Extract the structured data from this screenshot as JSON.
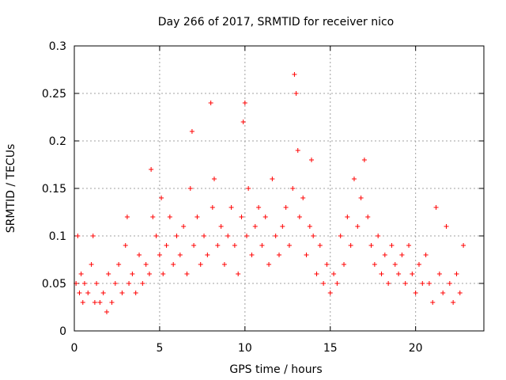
{
  "chart_data": {
    "type": "scatter",
    "title": "Day 266 of 2017, SRMTID for receiver nico",
    "xlabel": "GPS time / hours",
    "ylabel": "SRMTID / TECUs",
    "xlim": [
      0,
      24
    ],
    "ylim": [
      0,
      0.3
    ],
    "xticks": [
      0,
      5,
      10,
      15,
      20
    ],
    "xtick_labels": [
      "0",
      "5",
      "10",
      "15",
      "20"
    ],
    "yticks": [
      0,
      0.05,
      0.1,
      0.15,
      0.2,
      0.25,
      0.3
    ],
    "ytick_labels": [
      "0",
      "0.05",
      "0.1",
      "0.15",
      "0.2",
      "0.25",
      "0.3"
    ],
    "grid": true,
    "marker": "+",
    "color": "#ff0000",
    "series": [
      {
        "name": "SRMTID",
        "x": [
          0.1,
          0.2,
          0.3,
          0.4,
          0.5,
          0.6,
          0.8,
          1.0,
          1.1,
          1.2,
          1.3,
          1.5,
          1.7,
          1.9,
          2.0,
          2.2,
          2.4,
          2.6,
          2.8,
          3.0,
          3.1,
          3.2,
          3.4,
          3.6,
          3.8,
          4.0,
          4.2,
          4.4,
          4.5,
          4.6,
          4.8,
          5.0,
          5.1,
          5.2,
          5.4,
          5.6,
          5.8,
          6.0,
          6.2,
          6.4,
          6.6,
          6.8,
          6.9,
          7.0,
          7.2,
          7.4,
          7.6,
          7.8,
          8.0,
          8.1,
          8.2,
          8.4,
          8.6,
          8.8,
          9.0,
          9.2,
          9.4,
          9.6,
          9.8,
          9.9,
          10.0,
          10.1,
          10.2,
          10.4,
          10.6,
          10.8,
          11.0,
          11.2,
          11.4,
          11.6,
          11.8,
          12.0,
          12.2,
          12.4,
          12.6,
          12.8,
          12.9,
          13.0,
          13.1,
          13.2,
          13.4,
          13.6,
          13.8,
          13.9,
          14.0,
          14.2,
          14.4,
          14.6,
          14.8,
          15.0,
          15.2,
          15.4,
          15.6,
          15.8,
          16.0,
          16.2,
          16.4,
          16.6,
          16.8,
          17.0,
          17.2,
          17.4,
          17.6,
          17.8,
          18.0,
          18.2,
          18.4,
          18.6,
          18.8,
          19.0,
          19.2,
          19.4,
          19.6,
          19.8,
          20.0,
          20.2,
          20.4,
          20.6,
          20.8,
          21.0,
          21.2,
          21.4,
          21.6,
          21.8,
          22.0,
          22.2,
          22.4,
          22.6,
          22.8
        ],
        "y": [
          0.05,
          0.1,
          0.04,
          0.06,
          0.03,
          0.05,
          0.04,
          0.07,
          0.1,
          0.03,
          0.05,
          0.03,
          0.04,
          0.02,
          0.06,
          0.03,
          0.05,
          0.07,
          0.04,
          0.09,
          0.12,
          0.05,
          0.06,
          0.04,
          0.08,
          0.05,
          0.07,
          0.06,
          0.17,
          0.12,
          0.1,
          0.08,
          0.14,
          0.06,
          0.09,
          0.12,
          0.07,
          0.1,
          0.08,
          0.11,
          0.06,
          0.15,
          0.21,
          0.09,
          0.12,
          0.07,
          0.1,
          0.08,
          0.24,
          0.13,
          0.16,
          0.09,
          0.11,
          0.07,
          0.1,
          0.13,
          0.09,
          0.06,
          0.12,
          0.22,
          0.24,
          0.1,
          0.15,
          0.08,
          0.11,
          0.13,
          0.09,
          0.12,
          0.07,
          0.16,
          0.1,
          0.08,
          0.11,
          0.13,
          0.09,
          0.15,
          0.27,
          0.25,
          0.19,
          0.12,
          0.14,
          0.08,
          0.11,
          0.18,
          0.1,
          0.06,
          0.09,
          0.05,
          0.07,
          0.04,
          0.06,
          0.05,
          0.1,
          0.07,
          0.12,
          0.09,
          0.16,
          0.11,
          0.14,
          0.18,
          0.12,
          0.09,
          0.07,
          0.1,
          0.06,
          0.08,
          0.05,
          0.09,
          0.07,
          0.06,
          0.08,
          0.05,
          0.09,
          0.06,
          0.04,
          0.07,
          0.05,
          0.08,
          0.05,
          0.03,
          0.13,
          0.06,
          0.04,
          0.11,
          0.05,
          0.03,
          0.06,
          0.04,
          0.09
        ]
      }
    ]
  }
}
